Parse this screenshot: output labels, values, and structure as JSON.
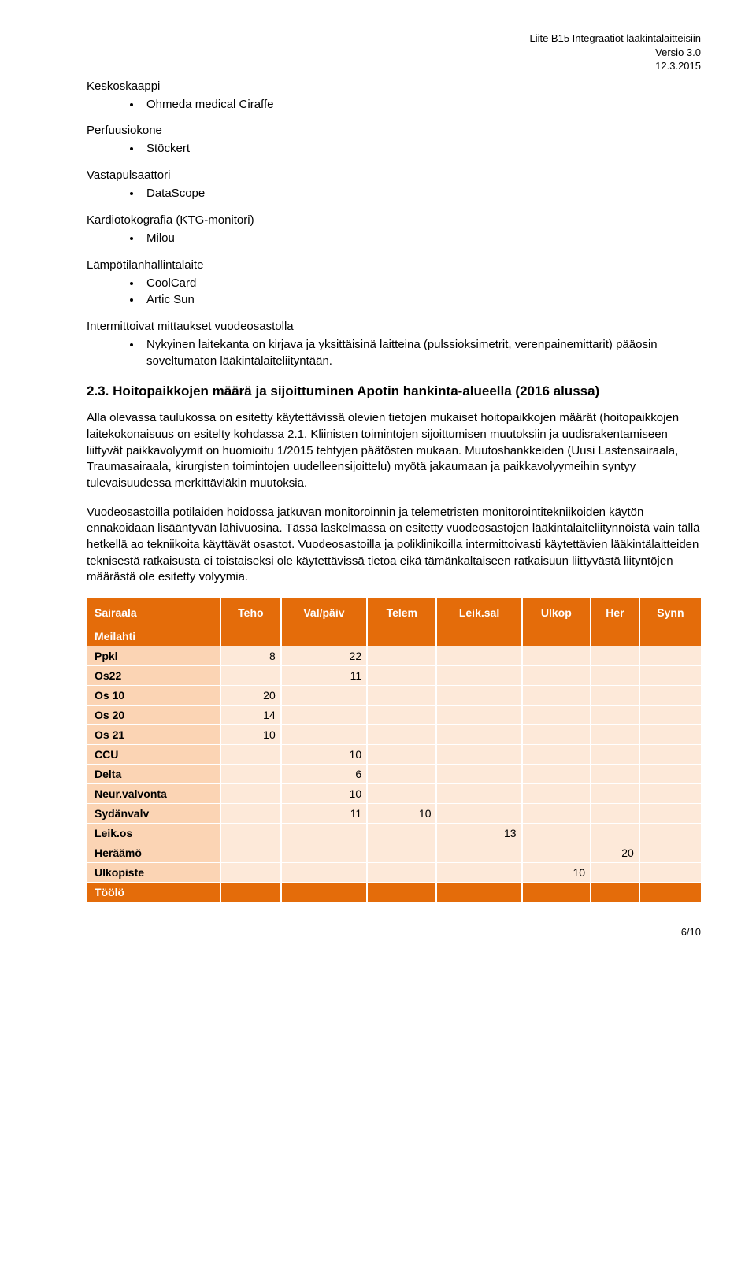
{
  "header": {
    "line1": "Liite B15 Integraatiot lääkintälaitteisiin",
    "line2": "Versio 3.0",
    "line3": "12.3.2015"
  },
  "lists": {
    "l0": {
      "heading": "Keskoskaappi",
      "items": [
        "Ohmeda medical Ciraffe"
      ]
    },
    "l1": {
      "heading": "Perfuusiokone",
      "items": [
        "Stöckert"
      ]
    },
    "l2": {
      "heading": "Vastapulsaattori",
      "items": [
        "DataScope"
      ]
    },
    "l3": {
      "heading": "Kardiotokografia (KTG-monitori)",
      "items": [
        "Milou"
      ]
    },
    "l4": {
      "heading": "Lämpötilanhallintalaite",
      "items": [
        "CoolCard",
        "Artic Sun"
      ]
    },
    "l5": {
      "heading": "Intermittoivat mittaukset vuodeosastolla",
      "items": [
        "Nykyinen laitekanta on kirjava ja yksittäisinä laitteina (pulssioksimetrit, verenpainemittarit) pääosin soveltumaton lääkintälaiteliityntään."
      ]
    }
  },
  "subheading": "2.3. Hoitopaikkojen määrä ja sijoittuminen Apotin hankinta-alueella (2016 alussa)",
  "paragraphs": {
    "p1": "Alla olevassa taulukossa on esitetty käytettävissä olevien tietojen mukaiset hoitopaikkojen määrät (hoitopaikkojen laitekokonaisuus on esitelty kohdassa 2.1. Kliinisten toimintojen sijoittumisen muutoksiin ja uudisrakentamiseen liittyvät paikkavolyymit on huomioitu 1/2015 tehtyjen päätösten mukaan. Muutoshankkeiden (Uusi Lastensairaala, Traumasairaala, kirurgisten toimintojen uudelleensijoittelu) myötä jakaumaan ja paikkavolyymeihin syntyy tulevaisuudessa merkittäviäkin muutoksia.",
    "p2": "Vuodeosastoilla potilaiden hoidossa jatkuvan monitoroinnin ja telemetristen monitorointitekniikoiden käytön ennakoidaan lisääntyvän lähivuosina. Tässä laskelmassa on esitetty vuodeosastojen lääkintälaiteliitynnöistä vain tällä hetkellä ao tekniikoita käyttävät osastot. Vuodeosastoilla ja poliklinikoilla intermittoivasti käytettävien lääkintälaitteiden teknisestä ratkaisusta ei toistaiseksi ole käytettävissä tietoa eikä tämänkaltaiseen ratkaisuun liittyvästä liityntöjen määrästä ole esitetty volyymia."
  },
  "table": {
    "columns": [
      "Sairaala",
      "Teho",
      "Val/päiv",
      "Telem",
      "Leik.sal",
      "Ulkop",
      "Her",
      "Synn"
    ],
    "header_bg": "#e46c0a",
    "header_fg": "#ffffff",
    "label_cell_bg": "#fbd4b4",
    "data_cell_bg": "#fde9d9",
    "rows": [
      {
        "type": "section",
        "label": "Meilahti",
        "cells": [
          "",
          "",
          "",
          "",
          "",
          "",
          ""
        ]
      },
      {
        "type": "normal",
        "label": "Ppkl",
        "cells": [
          "8",
          "22",
          "",
          "",
          "",
          "",
          ""
        ]
      },
      {
        "type": "normal",
        "label": "Os22",
        "cells": [
          "",
          "11",
          "",
          "",
          "",
          "",
          ""
        ]
      },
      {
        "type": "normal",
        "label": "Os 10",
        "cells": [
          "20",
          "",
          "",
          "",
          "",
          "",
          ""
        ]
      },
      {
        "type": "normal",
        "label": "Os 20",
        "cells": [
          "14",
          "",
          "",
          "",
          "",
          "",
          ""
        ]
      },
      {
        "type": "normal",
        "label": "Os 21",
        "cells": [
          "10",
          "",
          "",
          "",
          "",
          "",
          ""
        ]
      },
      {
        "type": "normal",
        "label": "CCU",
        "cells": [
          "",
          "10",
          "",
          "",
          "",
          "",
          ""
        ]
      },
      {
        "type": "normal",
        "label": "Delta",
        "cells": [
          "",
          "6",
          "",
          "",
          "",
          "",
          ""
        ]
      },
      {
        "type": "normal",
        "label": "Neur.valvonta",
        "cells": [
          "",
          "10",
          "",
          "",
          "",
          "",
          ""
        ]
      },
      {
        "type": "normal",
        "label": "Sydänvalv",
        "cells": [
          "",
          "11",
          "10",
          "",
          "",
          "",
          ""
        ]
      },
      {
        "type": "normal",
        "label": "Leik.os",
        "cells": [
          "",
          "",
          "",
          "13",
          "",
          "",
          ""
        ]
      },
      {
        "type": "normal",
        "label": "Heräämö",
        "cells": [
          "",
          "",
          "",
          "",
          "",
          "20",
          ""
        ]
      },
      {
        "type": "normal",
        "label": "Ulkopiste",
        "cells": [
          "",
          "",
          "",
          "",
          "10",
          "",
          ""
        ]
      },
      {
        "type": "section",
        "label": "Töölö",
        "cells": [
          "",
          "",
          "",
          "",
          "",
          "",
          ""
        ]
      }
    ]
  },
  "footer": "6/10"
}
